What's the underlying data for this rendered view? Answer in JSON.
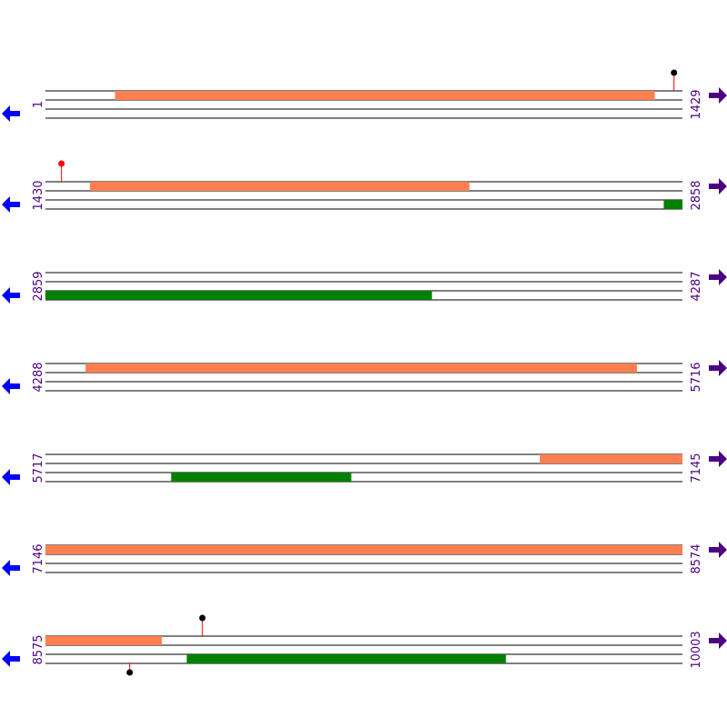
{
  "colors": {
    "background": "#ffffff",
    "strand_line": "#000000",
    "orf_orange": "#ff7f50",
    "orf_green": "#008000",
    "position_label": "#4b0082",
    "left_arrow": "#0000ff",
    "right_arrow": "#4b0082",
    "marker_stem": "#ff0000",
    "marker_black": "#000000",
    "marker_red": "#ff0000"
  },
  "left_arrow_icon": "arrow-left-icon",
  "right_arrow_icon": "arrow-right-icon",
  "row_length_bp": 1429,
  "rows": [
    {
      "start": "1",
      "end": "1429",
      "start_bp": 1,
      "end_bp": 1429,
      "features": [
        {
          "frame": 1,
          "start_bp": 157,
          "end_bp": 1367,
          "color": "orf_orange"
        }
      ],
      "markers": [
        {
          "position_bp": 1411,
          "side": "top",
          "color": "marker_black"
        }
      ]
    },
    {
      "start": "1430",
      "end": "2858",
      "start_bp": 1430,
      "end_bp": 2858,
      "features": [
        {
          "frame": 1,
          "start_bp": 1530,
          "end_bp": 2380,
          "color": "orf_orange"
        },
        {
          "frame": 3,
          "start_bp": 2817,
          "end_bp": 2858,
          "color": "orf_green"
        }
      ],
      "markers": [
        {
          "position_bp": 1466,
          "side": "top",
          "color": "marker_red"
        }
      ]
    },
    {
      "start": "2859",
      "end": "4287",
      "start_bp": 2859,
      "end_bp": 4287,
      "features": [
        {
          "frame": 3,
          "start_bp": 2859,
          "end_bp": 3725,
          "color": "orf_green"
        }
      ],
      "markers": []
    },
    {
      "start": "4288",
      "end": "5716",
      "start_bp": 4288,
      "end_bp": 5716,
      "features": [
        {
          "frame": 1,
          "start_bp": 4378,
          "end_bp": 5614,
          "color": "orf_orange"
        }
      ],
      "markers": []
    },
    {
      "start": "5717",
      "end": "7145",
      "start_bp": 5717,
      "end_bp": 7145,
      "features": [
        {
          "frame": 1,
          "start_bp": 6826,
          "end_bp": 7145,
          "color": "orf_orange"
        },
        {
          "frame": 3,
          "start_bp": 5999,
          "end_bp": 6402,
          "color": "orf_green"
        }
      ],
      "markers": []
    },
    {
      "start": "7146",
      "end": "8574",
      "start_bp": 7146,
      "end_bp": 8574,
      "features": [
        {
          "frame": 1,
          "start_bp": 7146,
          "end_bp": 8574,
          "color": "orf_orange"
        }
      ],
      "markers": []
    },
    {
      "start": "8575",
      "end": "10003",
      "start_bp": 8575,
      "end_bp": 10003,
      "features": [
        {
          "frame": 1,
          "start_bp": 8575,
          "end_bp": 8835,
          "color": "orf_orange"
        },
        {
          "frame": 3,
          "start_bp": 8892,
          "end_bp": 9607,
          "color": "orf_green"
        }
      ],
      "markers": [
        {
          "position_bp": 8927,
          "side": "top",
          "color": "marker_black"
        },
        {
          "position_bp": 8764,
          "side": "bottom",
          "color": "marker_black"
        }
      ]
    }
  ]
}
